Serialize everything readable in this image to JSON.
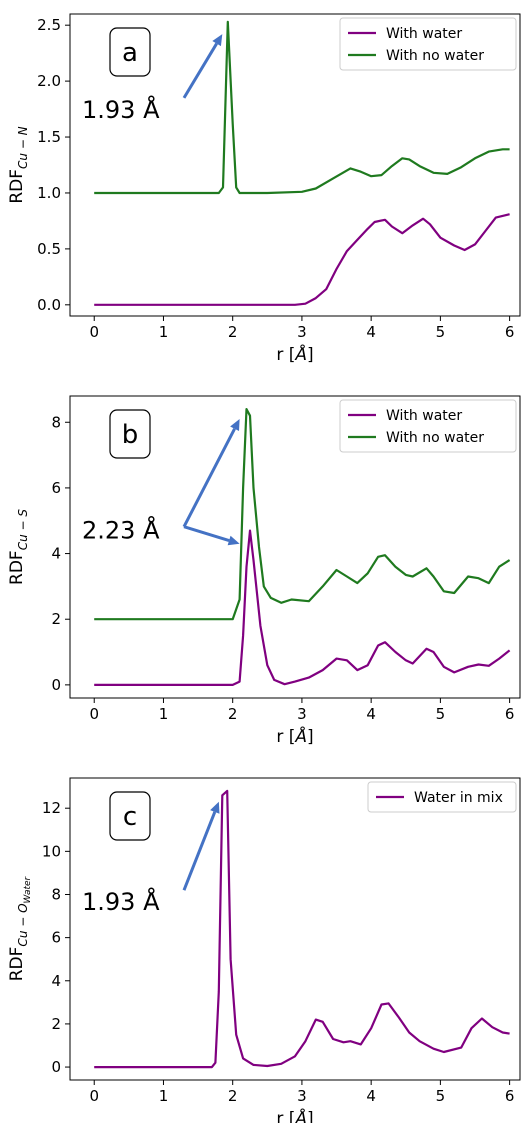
{
  "chart_data": [
    {
      "type": "line",
      "panel_label": "a",
      "xlabel": "r [Å]",
      "ylabel": {
        "base": "RDF",
        "sub": "Cu − N"
      },
      "xlim": [
        -0.35,
        6.15
      ],
      "ylim": [
        -0.1,
        2.6
      ],
      "xticks": [
        0,
        1,
        2,
        3,
        4,
        5,
        6
      ],
      "yticks": [
        0.0,
        0.5,
        1.0,
        1.5,
        2.0,
        2.5
      ],
      "ytick_decimals": 1,
      "legend_position": "top-right",
      "annotation": {
        "text": "1.93 Å",
        "arrow_targets": [
          [
            1.85,
            2.42
          ]
        ]
      },
      "series": [
        {
          "name": "With water",
          "color": "#800080",
          "points": [
            [
              0,
              0
            ],
            [
              0.5,
              0
            ],
            [
              1,
              0
            ],
            [
              1.5,
              0
            ],
            [
              2,
              0
            ],
            [
              2.5,
              0
            ],
            [
              2.9,
              0
            ],
            [
              3.05,
              0.01
            ],
            [
              3.2,
              0.06
            ],
            [
              3.35,
              0.14
            ],
            [
              3.5,
              0.32
            ],
            [
              3.65,
              0.48
            ],
            [
              3.8,
              0.58
            ],
            [
              3.95,
              0.68
            ],
            [
              4.05,
              0.74
            ],
            [
              4.2,
              0.76
            ],
            [
              4.3,
              0.7
            ],
            [
              4.45,
              0.64
            ],
            [
              4.6,
              0.71
            ],
            [
              4.75,
              0.77
            ],
            [
              4.85,
              0.72
            ],
            [
              5.0,
              0.6
            ],
            [
              5.2,
              0.53
            ],
            [
              5.35,
              0.49
            ],
            [
              5.5,
              0.54
            ],
            [
              5.65,
              0.66
            ],
            [
              5.8,
              0.78
            ],
            [
              6.0,
              0.81
            ]
          ]
        },
        {
          "name": "With no water",
          "color": "#1f7a1f",
          "points": [
            [
              0,
              1
            ],
            [
              0.5,
              1
            ],
            [
              1,
              1
            ],
            [
              1.5,
              1
            ],
            [
              1.8,
              1
            ],
            [
              1.86,
              1.05
            ],
            [
              1.93,
              2.53
            ],
            [
              2.0,
              1.62
            ],
            [
              2.05,
              1.05
            ],
            [
              2.1,
              1.0
            ],
            [
              2.5,
              1.0
            ],
            [
              3.0,
              1.01
            ],
            [
              3.2,
              1.04
            ],
            [
              3.45,
              1.13
            ],
            [
              3.7,
              1.22
            ],
            [
              3.85,
              1.19
            ],
            [
              4.0,
              1.15
            ],
            [
              4.15,
              1.16
            ],
            [
              4.3,
              1.24
            ],
            [
              4.45,
              1.31
            ],
            [
              4.55,
              1.3
            ],
            [
              4.7,
              1.24
            ],
            [
              4.9,
              1.18
            ],
            [
              5.1,
              1.17
            ],
            [
              5.3,
              1.23
            ],
            [
              5.5,
              1.31
            ],
            [
              5.7,
              1.37
            ],
            [
              5.9,
              1.39
            ],
            [
              6.0,
              1.39
            ]
          ]
        }
      ]
    },
    {
      "type": "line",
      "panel_label": "b",
      "xlabel": "r [Å]",
      "ylabel": {
        "base": "RDF",
        "sub": "Cu − S"
      },
      "xlim": [
        -0.35,
        6.15
      ],
      "ylim": [
        -0.4,
        8.8
      ],
      "xticks": [
        0,
        1,
        2,
        3,
        4,
        5,
        6
      ],
      "yticks": [
        0,
        2,
        4,
        6,
        8
      ],
      "ytick_decimals": 0,
      "legend_position": "top-right",
      "annotation": {
        "text": "2.23 Å",
        "arrow_targets": [
          [
            2.1,
            8.1
          ],
          [
            2.1,
            4.3
          ]
        ]
      },
      "series": [
        {
          "name": "With water",
          "color": "#800080",
          "points": [
            [
              0,
              0
            ],
            [
              0.5,
              0
            ],
            [
              1,
              0
            ],
            [
              1.5,
              0
            ],
            [
              2.0,
              0
            ],
            [
              2.1,
              0.1
            ],
            [
              2.15,
              1.5
            ],
            [
              2.2,
              3.6
            ],
            [
              2.25,
              4.7
            ],
            [
              2.3,
              3.8
            ],
            [
              2.4,
              1.8
            ],
            [
              2.5,
              0.6
            ],
            [
              2.6,
              0.15
            ],
            [
              2.75,
              0.02
            ],
            [
              2.9,
              0.1
            ],
            [
              3.1,
              0.22
            ],
            [
              3.3,
              0.45
            ],
            [
              3.5,
              0.8
            ],
            [
              3.65,
              0.75
            ],
            [
              3.8,
              0.45
            ],
            [
              3.95,
              0.6
            ],
            [
              4.1,
              1.2
            ],
            [
              4.2,
              1.3
            ],
            [
              4.35,
              1.0
            ],
            [
              4.5,
              0.75
            ],
            [
              4.6,
              0.65
            ],
            [
              4.8,
              1.1
            ],
            [
              4.9,
              1.0
            ],
            [
              5.05,
              0.55
            ],
            [
              5.2,
              0.38
            ],
            [
              5.4,
              0.55
            ],
            [
              5.55,
              0.62
            ],
            [
              5.7,
              0.58
            ],
            [
              5.85,
              0.8
            ],
            [
              6.0,
              1.05
            ]
          ]
        },
        {
          "name": "With no water",
          "color": "#1f7a1f",
          "points": [
            [
              0,
              2
            ],
            [
              0.5,
              2
            ],
            [
              1,
              2
            ],
            [
              1.5,
              2
            ],
            [
              2.0,
              2
            ],
            [
              2.1,
              2.6
            ],
            [
              2.15,
              6.0
            ],
            [
              2.2,
              8.4
            ],
            [
              2.25,
              8.2
            ],
            [
              2.3,
              6.0
            ],
            [
              2.38,
              4.2
            ],
            [
              2.45,
              3.0
            ],
            [
              2.55,
              2.65
            ],
            [
              2.7,
              2.5
            ],
            [
              2.85,
              2.6
            ],
            [
              3.1,
              2.55
            ],
            [
              3.3,
              3.0
            ],
            [
              3.5,
              3.5
            ],
            [
              3.65,
              3.3
            ],
            [
              3.8,
              3.1
            ],
            [
              3.95,
              3.4
            ],
            [
              4.1,
              3.9
            ],
            [
              4.2,
              3.95
            ],
            [
              4.35,
              3.6
            ],
            [
              4.5,
              3.35
            ],
            [
              4.6,
              3.3
            ],
            [
              4.8,
              3.55
            ],
            [
              4.9,
              3.3
            ],
            [
              5.05,
              2.85
            ],
            [
              5.2,
              2.8
            ],
            [
              5.4,
              3.3
            ],
            [
              5.55,
              3.25
            ],
            [
              5.7,
              3.1
            ],
            [
              5.85,
              3.6
            ],
            [
              6.0,
              3.8
            ]
          ]
        }
      ]
    },
    {
      "type": "line",
      "panel_label": "c",
      "xlabel": "r [Å]",
      "ylabel": {
        "base": "RDF",
        "sub": "Cu − O",
        "subsub": "Water"
      },
      "xlim": [
        -0.35,
        6.15
      ],
      "ylim": [
        -0.6,
        13.4
      ],
      "xticks": [
        0,
        1,
        2,
        3,
        4,
        5,
        6
      ],
      "yticks": [
        0,
        2,
        4,
        6,
        8,
        10,
        12
      ],
      "ytick_decimals": 0,
      "legend_position": "top-right",
      "annotation": {
        "text": "1.93 Å",
        "arrow_targets": [
          [
            1.8,
            12.3
          ]
        ]
      },
      "series": [
        {
          "name": "Water in mix",
          "color": "#800080",
          "points": [
            [
              0,
              0
            ],
            [
              0.5,
              0
            ],
            [
              1,
              0
            ],
            [
              1.5,
              0
            ],
            [
              1.7,
              0
            ],
            [
              1.75,
              0.2
            ],
            [
              1.8,
              3.5
            ],
            [
              1.85,
              12.6
            ],
            [
              1.92,
              12.8
            ],
            [
              1.97,
              5.0
            ],
            [
              2.05,
              1.5
            ],
            [
              2.15,
              0.4
            ],
            [
              2.3,
              0.1
            ],
            [
              2.5,
              0.05
            ],
            [
              2.7,
              0.15
            ],
            [
              2.9,
              0.5
            ],
            [
              3.05,
              1.2
            ],
            [
              3.2,
              2.2
            ],
            [
              3.3,
              2.1
            ],
            [
              3.45,
              1.3
            ],
            [
              3.6,
              1.15
            ],
            [
              3.7,
              1.2
            ],
            [
              3.85,
              1.05
            ],
            [
              4.0,
              1.8
            ],
            [
              4.15,
              2.9
            ],
            [
              4.25,
              2.95
            ],
            [
              4.4,
              2.3
            ],
            [
              4.55,
              1.6
            ],
            [
              4.7,
              1.2
            ],
            [
              4.9,
              0.85
            ],
            [
              5.05,
              0.7
            ],
            [
              5.3,
              0.9
            ],
            [
              5.45,
              1.8
            ],
            [
              5.6,
              2.25
            ],
            [
              5.75,
              1.85
            ],
            [
              5.9,
              1.6
            ],
            [
              6.0,
              1.55
            ]
          ]
        }
      ]
    }
  ]
}
